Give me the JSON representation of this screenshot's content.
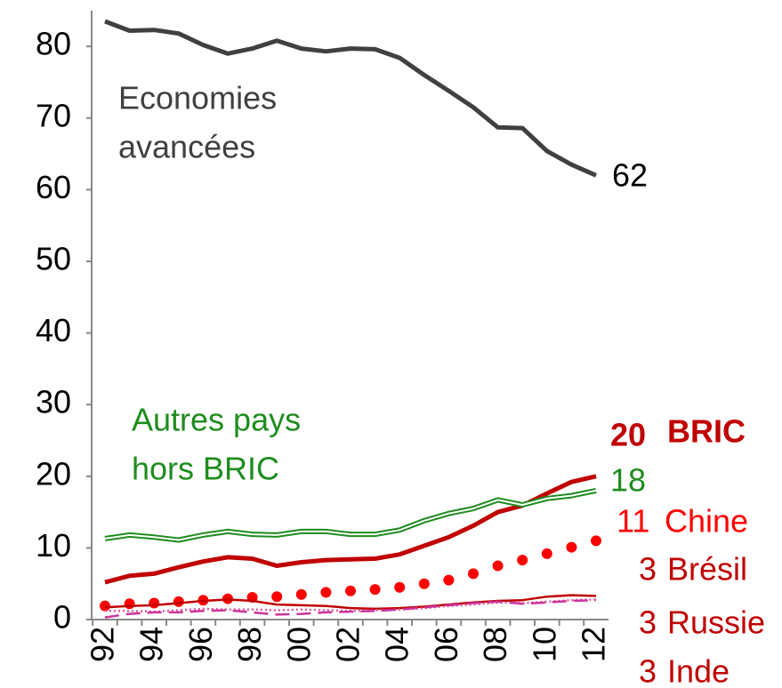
{
  "chart_data": {
    "type": "line",
    "categories": [
      "92",
      null,
      "94",
      null,
      "96",
      null,
      "98",
      null,
      "00",
      null,
      "02",
      null,
      "04",
      null,
      "06",
      null,
      "08",
      null,
      "10",
      null,
      "12"
    ],
    "ylim": [
      0,
      85
    ],
    "yticks": [
      0,
      10,
      20,
      30,
      40,
      50,
      60,
      70,
      80
    ],
    "series": [
      {
        "name_lines": [
          "Economies",
          "avancées"
        ],
        "color": "#404040",
        "style": "solid",
        "width": 5,
        "values": [
          83.5,
          82.2,
          82.3,
          81.8,
          80.2,
          79.0,
          79.7,
          80.8,
          79.7,
          79.3,
          79.7,
          79.6,
          78.4,
          76.0,
          73.8,
          71.5,
          68.7,
          68.6,
          65.4,
          63.5,
          62
        ],
        "end_label": "62"
      },
      {
        "name_lines": [
          "BRIC"
        ],
        "color": "#c00000",
        "style": "solid",
        "width": 5,
        "values": [
          5.2,
          6.1,
          6.4,
          7.3,
          8.1,
          8.7,
          8.5,
          7.5,
          8.0,
          8.3,
          8.4,
          8.5,
          9.1,
          10.3,
          11.5,
          13.1,
          15.0,
          15.9,
          17.6,
          19.2,
          20
        ],
        "end_label": "20"
      },
      {
        "name_lines": [
          "Autres pays",
          "hors BRIC"
        ],
        "color": "#1e8c1e",
        "style": "double",
        "width": 6,
        "values": [
          11.3,
          11.8,
          11.5,
          11.1,
          11.8,
          12.3,
          11.9,
          11.8,
          12.3,
          12.3,
          11.9,
          11.9,
          12.5,
          13.8,
          14.8,
          15.5,
          16.7,
          16.0,
          16.9,
          17.3,
          18
        ],
        "end_label": "18"
      },
      {
        "name_lines": [
          "Chine"
        ],
        "color": "#ff0000",
        "style": "dots",
        "width": 6,
        "values": [
          1.9,
          2.2,
          2.3,
          2.5,
          2.7,
          2.9,
          3.1,
          3.2,
          3.5,
          3.8,
          4.0,
          4.2,
          4.5,
          5.0,
          5.5,
          6.4,
          7.5,
          8.3,
          9.2,
          10.1,
          11
        ],
        "end_label": "11"
      },
      {
        "name_lines": [
          "Brésil"
        ],
        "color": "#c00000",
        "style": "solid",
        "width": 2.5,
        "values": [
          1.7,
          1.9,
          2.0,
          2.3,
          2.6,
          2.8,
          2.6,
          2.1,
          2.0,
          1.9,
          1.6,
          1.5,
          1.6,
          1.8,
          2.1,
          2.4,
          2.6,
          2.7,
          3.2,
          3.4,
          3.3
        ],
        "end_label": "3"
      },
      {
        "name_lines": [
          "Russie"
        ],
        "color": "#e0559b",
        "style": "dotted",
        "width": 2.5,
        "values": [
          1.2,
          1.2,
          1.1,
          1.3,
          1.5,
          1.4,
          1.4,
          1.3,
          1.4,
          1.3,
          1.2,
          1.3,
          1.4,
          1.6,
          1.9,
          2.1,
          2.4,
          2.3,
          2.5,
          2.7,
          2.8
        ],
        "end_label": "3"
      },
      {
        "name_lines": [
          "Inde"
        ],
        "color": "#cc3399",
        "style": "dashed",
        "width": 2.5,
        "values": [
          0.3,
          0.8,
          1.0,
          1.0,
          1.2,
          1.3,
          1.0,
          0.7,
          0.8,
          1.0,
          1.1,
          1.2,
          1.4,
          1.7,
          2.0,
          2.3,
          2.5,
          2.2,
          2.4,
          2.6,
          2.7
        ],
        "end_label": "3"
      }
    ]
  }
}
